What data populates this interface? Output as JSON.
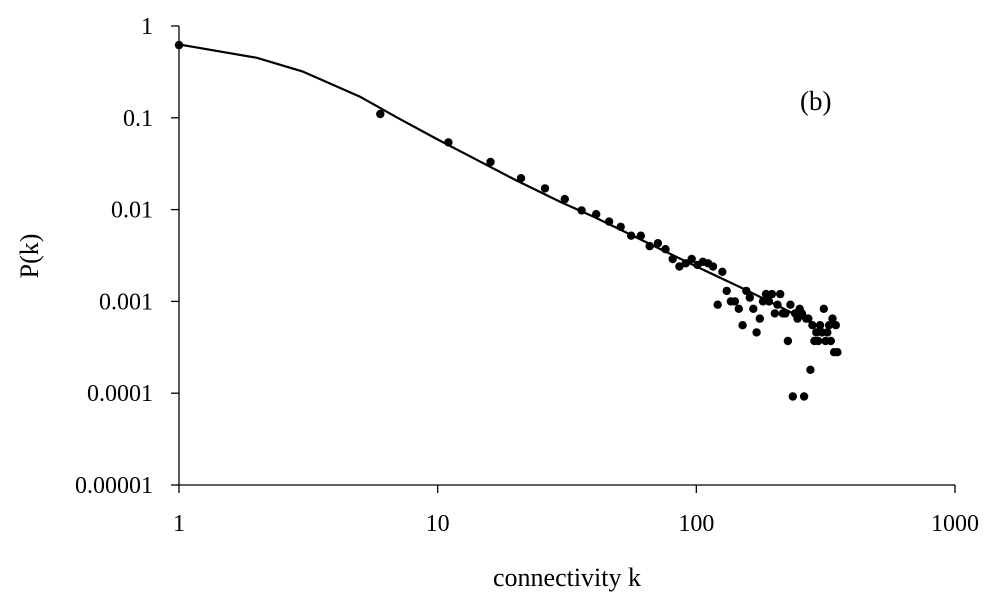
{
  "chart_data": {
    "type": "scatter",
    "title": "",
    "xlabel": "connectivity k",
    "ylabel": "P(k)",
    "annotation": "(b)",
    "x_scale": "log",
    "y_scale": "log",
    "xlim": [
      1,
      1000
    ],
    "ylim": [
      1e-05,
      1
    ],
    "grid": false,
    "legend": "none",
    "x_ticks": [
      1,
      10,
      100,
      1000
    ],
    "x_tick_labels": [
      "1",
      "10",
      "100",
      "1000"
    ],
    "y_ticks": [
      1,
      0.1,
      0.01,
      0.001,
      0.0001,
      1e-05
    ],
    "y_tick_labels": [
      "1",
      "0.1",
      "0.01",
      "0.001",
      "0.0001",
      "0.00001"
    ],
    "series": [
      {
        "kind": "points",
        "points": [
          [
            1,
            0.62
          ],
          [
            6,
            0.11
          ],
          [
            11,
            0.054
          ],
          [
            16,
            0.033
          ],
          [
            21,
            0.022
          ],
          [
            26,
            0.017
          ],
          [
            31,
            0.013
          ],
          [
            36,
            0.0098
          ],
          [
            41,
            0.0089
          ],
          [
            46,
            0.0074
          ],
          [
            51,
            0.0065
          ],
          [
            56,
            0.0052
          ],
          [
            61,
            0.0052
          ],
          [
            66,
            0.004
          ],
          [
            71,
            0.0043
          ],
          [
            76,
            0.0037
          ],
          [
            81,
            0.0029
          ],
          [
            86,
            0.0024
          ],
          [
            91,
            0.0026
          ],
          [
            96,
            0.0029
          ],
          [
            101,
            0.0025
          ],
          [
            106,
            0.0027
          ],
          [
            111,
            0.0026
          ],
          [
            116,
            0.0024
          ],
          [
            121,
            0.00092
          ],
          [
            126,
            0.0021
          ],
          [
            131,
            0.0013
          ],
          [
            136,
            0.001
          ],
          [
            141,
            0.001
          ],
          [
            146,
            0.00083
          ],
          [
            151,
            0.00055
          ],
          [
            156,
            0.0013
          ],
          [
            161,
            0.0011
          ],
          [
            166,
            0.00083
          ],
          [
            171,
            0.00046
          ],
          [
            176,
            0.00065
          ],
          [
            181,
            0.001
          ],
          [
            186,
            0.0012
          ],
          [
            191,
            0.001
          ],
          [
            196,
            0.0012
          ],
          [
            201,
            0.00074
          ],
          [
            206,
            0.00092
          ],
          [
            211,
            0.0012
          ],
          [
            216,
            0.00074
          ],
          [
            221,
            0.00074
          ],
          [
            226,
            0.00037
          ],
          [
            231,
            0.00092
          ],
          [
            236,
            9.2e-05
          ],
          [
            241,
            0.00074
          ],
          [
            246,
            0.00065
          ],
          [
            251,
            0.00083
          ],
          [
            256,
            0.00074
          ],
          [
            261,
            9.2e-05
          ],
          [
            266,
            0.00065
          ],
          [
            271,
            0.00065
          ],
          [
            276,
            0.00018
          ],
          [
            281,
            0.00055
          ],
          [
            286,
            0.00037
          ],
          [
            291,
            0.00046
          ],
          [
            296,
            0.00037
          ],
          [
            301,
            0.00055
          ],
          [
            306,
            0.00046
          ],
          [
            311,
            0.00083
          ],
          [
            316,
            0.00037
          ],
          [
            321,
            0.00046
          ],
          [
            326,
            0.00055
          ],
          [
            331,
            0.00037
          ],
          [
            336,
            0.00065
          ],
          [
            341,
            0.00028
          ],
          [
            346,
            0.00055
          ],
          [
            351,
            0.00028
          ]
        ]
      },
      {
        "kind": "fit-curve",
        "points": [
          [
            1,
            0.63
          ],
          [
            2,
            0.45
          ],
          [
            3,
            0.32
          ],
          [
            5,
            0.17
          ],
          [
            7,
            0.1
          ],
          [
            10,
            0.058
          ],
          [
            15,
            0.032
          ],
          [
            20,
            0.021
          ],
          [
            30,
            0.012
          ],
          [
            40,
            0.0084
          ],
          [
            50,
            0.0062
          ],
          [
            70,
            0.0039
          ],
          [
            100,
            0.0024
          ],
          [
            150,
            0.0014
          ],
          [
            200,
            0.00094
          ],
          [
            280,
            0.00058
          ]
        ]
      }
    ]
  }
}
